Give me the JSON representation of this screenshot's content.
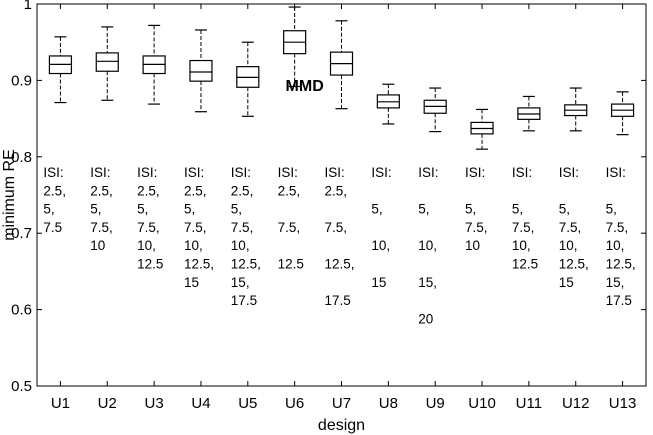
{
  "chart_data": {
    "type": "box",
    "title": "",
    "xlabel": "design",
    "ylabel": "minimum RE",
    "ylim": [
      0.5,
      1.0
    ],
    "yticks": [
      "0.5",
      "0.6",
      "0.7",
      "0.8",
      "0.9",
      "1"
    ],
    "categories": [
      "U1",
      "U2",
      "U3",
      "U4",
      "U5",
      "U6",
      "U7",
      "U8",
      "U9",
      "U10",
      "U11",
      "U12",
      "U13"
    ],
    "boxes": [
      {
        "whisker_low": 0.871,
        "q1": 0.909,
        "median": 0.921,
        "q3": 0.932,
        "whisker_high": 0.957
      },
      {
        "whisker_low": 0.874,
        "q1": 0.912,
        "median": 0.925,
        "q3": 0.936,
        "whisker_high": 0.97
      },
      {
        "whisker_low": 0.869,
        "q1": 0.909,
        "median": 0.921,
        "q3": 0.932,
        "whisker_high": 0.972
      },
      {
        "whisker_low": 0.859,
        "q1": 0.899,
        "median": 0.911,
        "q3": 0.926,
        "whisker_high": 0.966
      },
      {
        "whisker_low": 0.853,
        "q1": 0.891,
        "median": 0.904,
        "q3": 0.918,
        "whisker_high": 0.95
      },
      {
        "whisker_low": 0.892,
        "q1": 0.935,
        "median": 0.95,
        "q3": 0.965,
        "whisker_high": 0.996
      },
      {
        "whisker_low": 0.863,
        "q1": 0.907,
        "median": 0.922,
        "q3": 0.937,
        "whisker_high": 0.978
      },
      {
        "whisker_low": 0.843,
        "q1": 0.864,
        "median": 0.872,
        "q3": 0.881,
        "whisker_high": 0.895
      },
      {
        "whisker_low": 0.833,
        "q1": 0.857,
        "median": 0.866,
        "q3": 0.874,
        "whisker_high": 0.89
      },
      {
        "whisker_low": 0.81,
        "q1": 0.83,
        "median": 0.837,
        "q3": 0.845,
        "whisker_high": 0.862
      },
      {
        "whisker_low": 0.834,
        "q1": 0.849,
        "median": 0.856,
        "q3": 0.864,
        "whisker_high": 0.879
      },
      {
        "whisker_low": 0.834,
        "q1": 0.854,
        "median": 0.861,
        "q3": 0.868,
        "whisker_high": 0.89
      },
      {
        "whisker_low": 0.829,
        "q1": 0.853,
        "median": 0.861,
        "q3": 0.869,
        "whisker_high": 0.885
      }
    ],
    "isi_header": "ISI:",
    "isi_labels": [
      [
        "2.5,",
        "5,",
        "7.5"
      ],
      [
        "2.5,",
        "5,",
        "7.5,",
        "10"
      ],
      [
        "2.5,",
        "5,",
        "7.5,",
        "10,",
        "12.5"
      ],
      [
        "2.5,",
        "5,",
        "7.5,",
        "10,",
        "12.5,",
        "15"
      ],
      [
        "2.5,",
        "5,",
        "7.5,",
        "10,",
        "12.5,",
        "15,",
        "17.5"
      ],
      [
        "2.5,",
        "",
        "7.5,",
        "",
        "12.5"
      ],
      [
        "2.5,",
        "",
        "7.5,",
        "",
        "12.5,",
        "",
        "17.5"
      ],
      [
        "",
        "5,",
        "",
        "10,",
        "",
        "15"
      ],
      [
        "",
        "5,",
        "",
        "10,",
        "",
        "15,",
        "",
        "20"
      ],
      [
        "",
        "5,",
        "7.5,",
        "10"
      ],
      [
        "",
        "5,",
        "7.5,",
        "10,",
        "12.5"
      ],
      [
        "",
        "5,",
        "7.5,",
        "10,",
        "12.5,",
        "15"
      ],
      [
        "",
        "5,",
        "7.5,",
        "10,",
        "12.5,",
        "15,",
        "17.5"
      ]
    ],
    "annotation": {
      "text": "MMD",
      "anchor_category": "U6",
      "y": 0.886
    },
    "grid": false,
    "legend": "none"
  }
}
